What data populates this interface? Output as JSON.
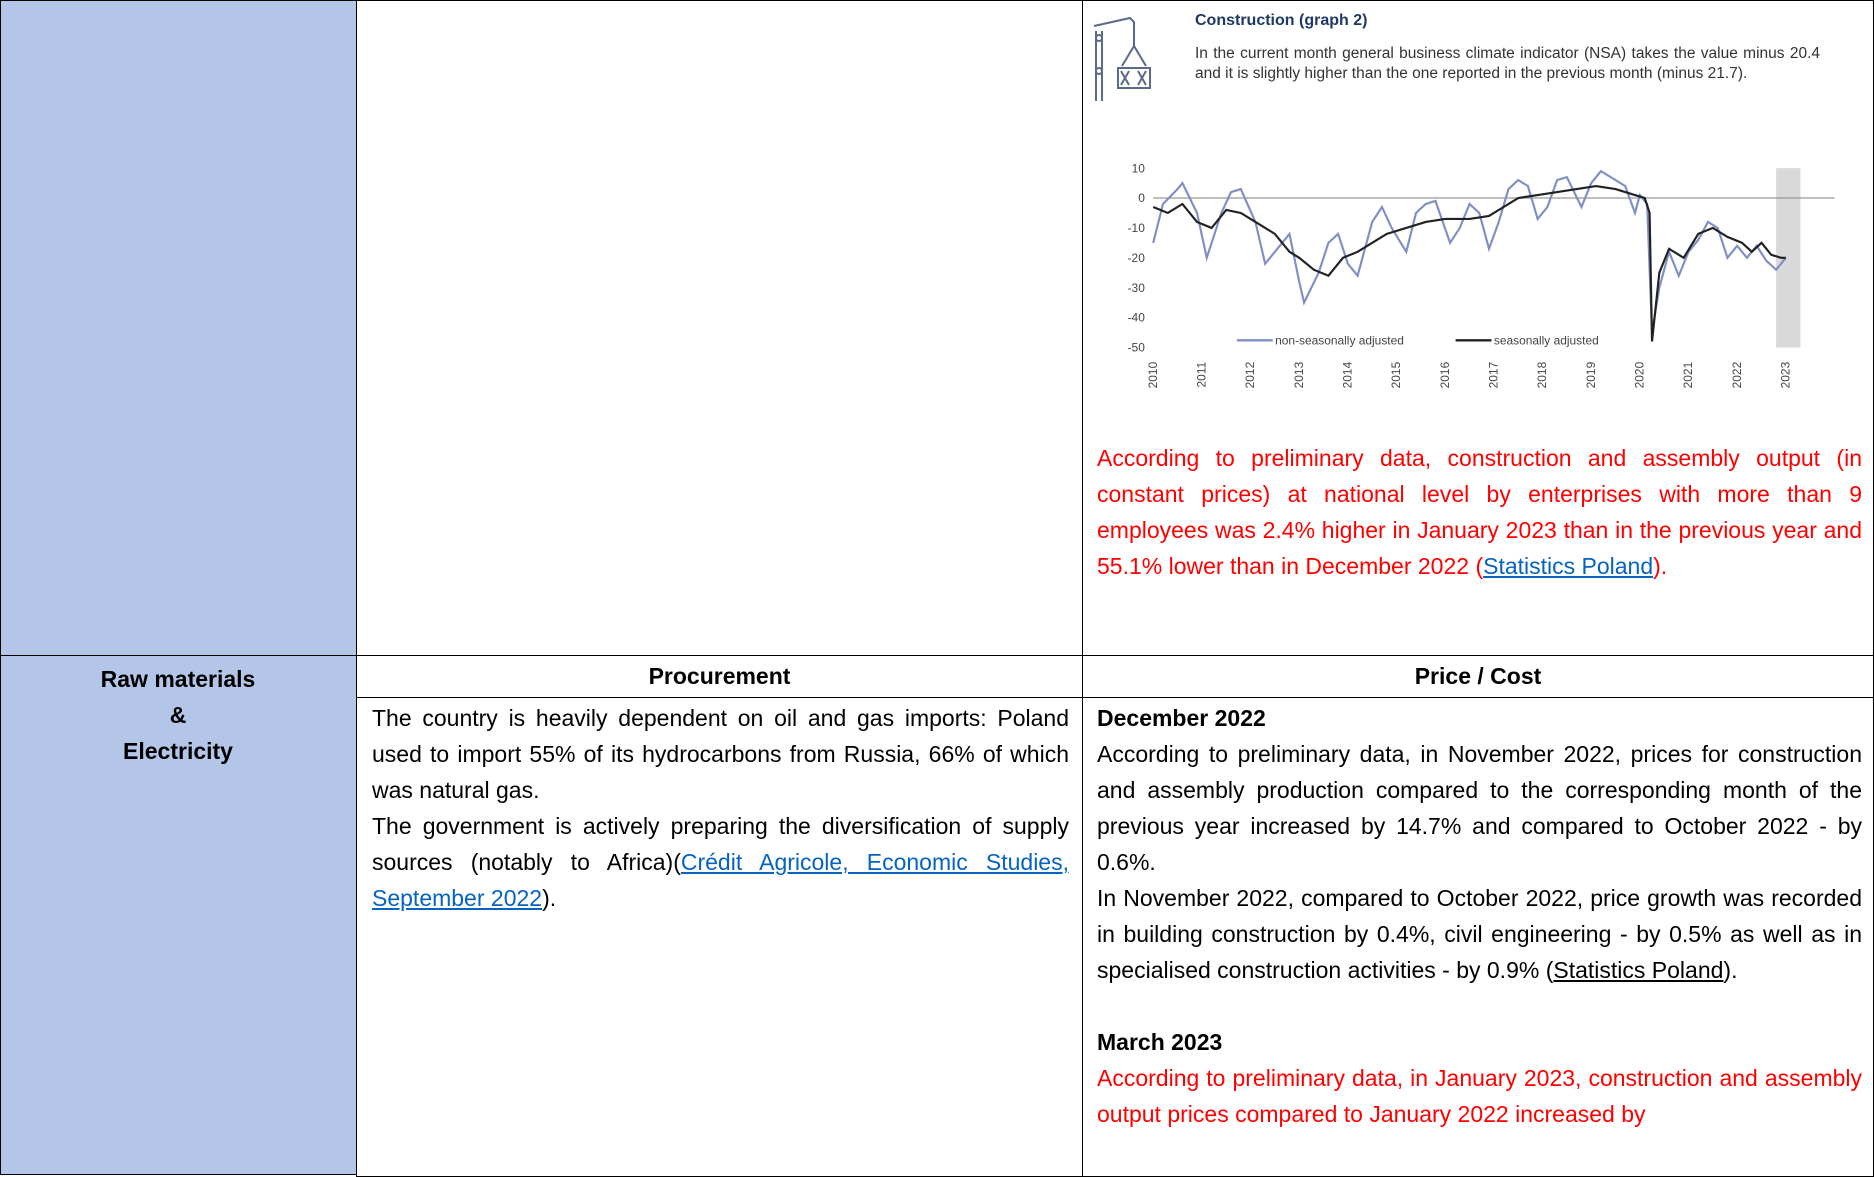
{
  "construction": {
    "heading": "Construction (graph 2)",
    "text": "In the current month general business climate indicator (NSA) takes the value minus 20.4 and it is slightly higher than the one reported in the previous month (minus 21.7).",
    "output_note": [
      "According to preliminary data, construction and assembly output (in constant prices) at national level by enterprises with more than 9 employees was 2.4% higher in January 2023 than in the previous year and 55.1% lower than in December 2022 (",
      "Statistics Poland",
      ")."
    ]
  },
  "chart_data": {
    "type": "line",
    "series": [
      {
        "name": "non-seasonally adjusted",
        "color": "#7f8fc4",
        "x": [
          2010.0,
          2010.2,
          2010.5,
          2010.6,
          2010.9,
          2011.1,
          2011.4,
          2011.6,
          2011.8,
          2012.1,
          2012.3,
          2012.5,
          2012.8,
          2013.0,
          2013.1,
          2013.4,
          2013.6,
          2013.8,
          2014.0,
          2014.2,
          2014.5,
          2014.7,
          2014.9,
          2015.2,
          2015.4,
          2015.6,
          2015.8,
          2016.1,
          2016.3,
          2016.5,
          2016.7,
          2016.9,
          2017.1,
          2017.3,
          2017.5,
          2017.7,
          2017.9,
          2018.1,
          2018.3,
          2018.5,
          2018.8,
          2019.0,
          2019.2,
          2019.4,
          2019.7,
          2019.9,
          2020.0,
          2020.15,
          2020.25,
          2020.4,
          2020.6,
          2020.8,
          2021.0,
          2021.2,
          2021.4,
          2021.6,
          2021.8,
          2022.0,
          2022.2,
          2022.4,
          2022.6,
          2022.8,
          2023.0
        ],
        "values": [
          -15,
          -2,
          3,
          5,
          -5,
          -20,
          -5,
          2,
          3,
          -8,
          -22,
          -18,
          -12,
          -28,
          -35,
          -25,
          -15,
          -12,
          -22,
          -26,
          -8,
          -3,
          -10,
          -18,
          -5,
          -2,
          -1,
          -15,
          -10,
          -2,
          -5,
          -17,
          -8,
          3,
          6,
          4,
          -7,
          -3,
          6,
          7,
          -3,
          5,
          9,
          7,
          4,
          -5,
          1,
          -2,
          -45,
          -30,
          -18,
          -26,
          -18,
          -14,
          -8,
          -10,
          -20,
          -16,
          -20,
          -16,
          -21,
          -24,
          -20
        ]
      },
      {
        "name": "seasonally adjusted",
        "color": "#222222",
        "x": [
          2010.0,
          2010.3,
          2010.6,
          2010.9,
          2011.2,
          2011.5,
          2011.8,
          2012.1,
          2012.5,
          2012.8,
          2013.0,
          2013.3,
          2013.6,
          2013.9,
          2014.2,
          2014.5,
          2014.8,
          2015.2,
          2015.6,
          2016.0,
          2016.5,
          2016.9,
          2017.2,
          2017.5,
          2017.9,
          2018.3,
          2018.7,
          2019.1,
          2019.5,
          2019.9,
          2020.1,
          2020.2,
          2020.25,
          2020.4,
          2020.6,
          2020.9,
          2021.2,
          2021.5,
          2021.8,
          2022.1,
          2022.3,
          2022.5,
          2022.7,
          2022.9,
          2023.0
        ],
        "values": [
          -3,
          -5,
          -2,
          -8,
          -10,
          -4,
          -5,
          -8,
          -12,
          -18,
          -20,
          -24,
          -26,
          -20,
          -18,
          -15,
          -12,
          -10,
          -8,
          -7,
          -7,
          -6,
          -3,
          0,
          1,
          2,
          3,
          4,
          3,
          1,
          0,
          -5,
          -48,
          -25,
          -17,
          -20,
          -12,
          -10,
          -13,
          -15,
          -18,
          -15,
          -19,
          -20,
          -20
        ]
      }
    ],
    "xlim": [
      2010,
      2024
    ],
    "ylim": [
      -50,
      10
    ],
    "xticks": [
      2010,
      2011,
      2012,
      2013,
      2014,
      2015,
      2016,
      2017,
      2018,
      2019,
      2020,
      2021,
      2022,
      2023
    ],
    "yticks": [
      10,
      0,
      -10,
      -20,
      -30,
      -40,
      -50
    ],
    "reference_line": 0,
    "highlight_x": [
      2022.8,
      2023.3
    ]
  },
  "raw_materials": {
    "row_label": [
      "Raw materials",
      "&",
      "Electricity"
    ],
    "headers": [
      "Procurement",
      "Price / Cost"
    ],
    "procurement": {
      "p1": "The country is heavily dependent on oil and gas imports: Poland used to import 55% of its hydrocarbons from Russia, 66% of which was natural gas.",
      "p2": [
        "The government is actively preparing the diversification of supply sources (notably to Africa)(",
        "Crédit Agricole, Economic Studies, September 2022",
        ")."
      ]
    },
    "price": {
      "december": {
        "heading": "December 2022",
        "p1": "According to preliminary data, in November 2022, prices for construction and assembly production compared to the corresponding month of the previous year increased by 14.7% and compared to October 2022 - by 0.6%.",
        "p2": [
          "In November 2022, compared to October 2022, price growth was recorded in building construction by 0.4%, civil engineering - by 0.5% as well as in specialised construction activities - by 0.9% (",
          "Statistics Poland",
          ")."
        ]
      },
      "march": {
        "heading": "March 2023",
        "p1": "According to preliminary data, in January 2023, construction and assembly output prices compared to January 2022 increased by"
      }
    }
  }
}
